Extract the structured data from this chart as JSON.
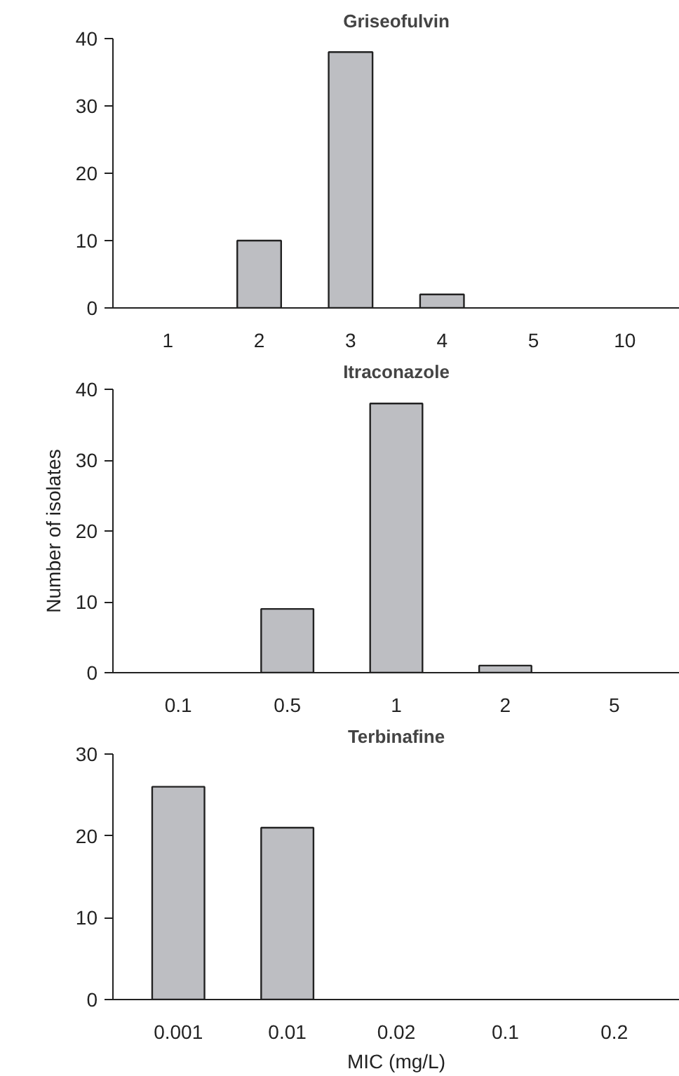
{
  "chart_data": [
    {
      "type": "bar",
      "title": "Griseofulvin",
      "categories": [
        "1",
        "2",
        "3",
        "4",
        "5",
        "10"
      ],
      "values": [
        0,
        10,
        38,
        2,
        0,
        0
      ],
      "color": "#bdbec2",
      "ylim": [
        0,
        40
      ],
      "yticks": [
        0,
        10,
        20,
        30,
        40
      ]
    },
    {
      "type": "bar",
      "title": "Itraconazole",
      "ylabel": "Number of isolates",
      "categories": [
        "0.1",
        "0.5",
        "1",
        "2",
        "5"
      ],
      "values": [
        0,
        9,
        38,
        1,
        0
      ],
      "color": "#bdbec2",
      "ylim": [
        0,
        40
      ],
      "yticks": [
        0,
        10,
        20,
        30,
        40
      ]
    },
    {
      "type": "bar",
      "title": "Terbinafine",
      "xlabel": "MIC (mg/L)",
      "categories": [
        "0.001",
        "0.01",
        "0.02",
        "0.1",
        "0.2"
      ],
      "values": [
        26,
        21,
        0,
        0,
        0
      ],
      "color": "#bdbec2",
      "ylim": [
        0,
        30
      ],
      "yticks": [
        0,
        10,
        20,
        30
      ]
    }
  ]
}
